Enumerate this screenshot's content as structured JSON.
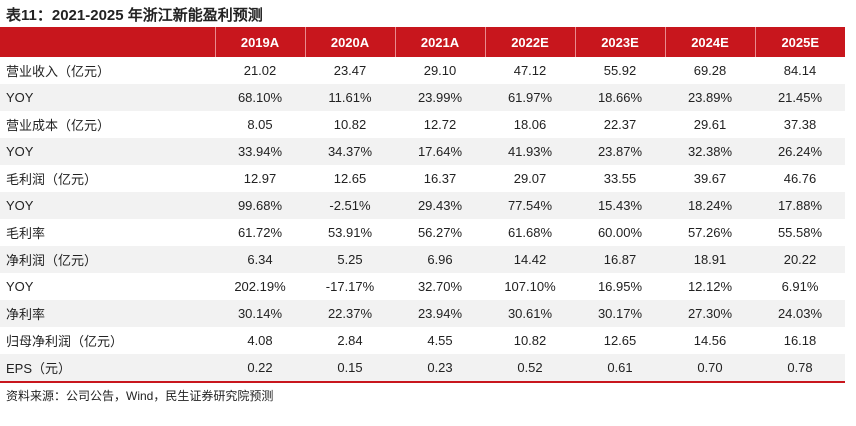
{
  "title": "表11：2021-2025 年浙江新能盈利预测",
  "table": {
    "headers": [
      "",
      "2019A",
      "2020A",
      "2021A",
      "2022E",
      "2023E",
      "2024E",
      "2025E"
    ],
    "rows": [
      {
        "label": "营业收入（亿元）",
        "values": [
          "21.02",
          "23.47",
          "29.10",
          "47.12",
          "55.92",
          "69.28",
          "84.14"
        ]
      },
      {
        "label": "YOY",
        "values": [
          "68.10%",
          "11.61%",
          "23.99%",
          "61.97%",
          "18.66%",
          "23.89%",
          "21.45%"
        ]
      },
      {
        "label": "营业成本（亿元）",
        "values": [
          "8.05",
          "10.82",
          "12.72",
          "18.06",
          "22.37",
          "29.61",
          "37.38"
        ]
      },
      {
        "label": "YOY",
        "values": [
          "33.94%",
          "34.37%",
          "17.64%",
          "41.93%",
          "23.87%",
          "32.38%",
          "26.24%"
        ]
      },
      {
        "label": "毛利润（亿元）",
        "values": [
          "12.97",
          "12.65",
          "16.37",
          "29.07",
          "33.55",
          "39.67",
          "46.76"
        ]
      },
      {
        "label": "YOY",
        "values": [
          "99.68%",
          "-2.51%",
          "29.43%",
          "77.54%",
          "15.43%",
          "18.24%",
          "17.88%"
        ]
      },
      {
        "label": "毛利率",
        "values": [
          "61.72%",
          "53.91%",
          "56.27%",
          "61.68%",
          "60.00%",
          "57.26%",
          "55.58%"
        ]
      },
      {
        "label": "净利润（亿元）",
        "values": [
          "6.34",
          "5.25",
          "6.96",
          "14.42",
          "16.87",
          "18.91",
          "20.22"
        ]
      },
      {
        "label": "YOY",
        "values": [
          "202.19%",
          "-17.17%",
          "32.70%",
          "107.10%",
          "16.95%",
          "12.12%",
          "6.91%"
        ]
      },
      {
        "label": "净利率",
        "values": [
          "30.14%",
          "22.37%",
          "23.94%",
          "30.61%",
          "30.17%",
          "27.30%",
          "24.03%"
        ]
      },
      {
        "label": "归母净利润（亿元）",
        "values": [
          "4.08",
          "2.84",
          "4.55",
          "10.82",
          "12.65",
          "14.56",
          "16.18"
        ]
      },
      {
        "label": "EPS（元）",
        "values": [
          "0.22",
          "0.15",
          "0.23",
          "0.52",
          "0.61",
          "0.70",
          "0.78"
        ]
      }
    ]
  },
  "source": "资料来源：公司公告，Wind，民生证券研究院预测",
  "colors": {
    "header_bg": "#c8161d",
    "alt_row_bg": "#f2f2f2"
  }
}
